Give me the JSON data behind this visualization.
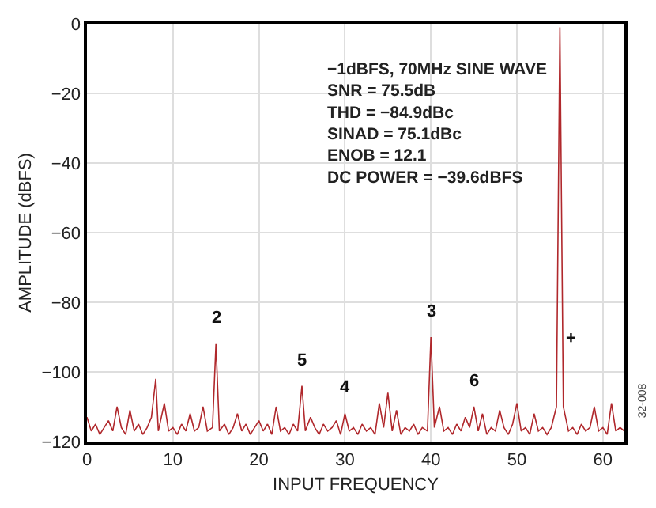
{
  "chart_data": {
    "type": "line",
    "xlabel": "INPUT FREQUENCY",
    "ylabel": "AMPLITUDE (dBFS)",
    "xlim": [
      0,
      62.5
    ],
    "xticks": [
      0,
      10,
      20,
      30,
      40,
      50,
      60
    ],
    "ylim": [
      -120,
      0
    ],
    "yticks": [
      -120,
      -100,
      -80,
      -60,
      -40,
      -20,
      0
    ],
    "grid": true,
    "series": [
      {
        "color": "#b0282c",
        "x": [
          0,
          0.5,
          1,
          1.5,
          2,
          2.5,
          3,
          3.5,
          4,
          4.5,
          5,
          5.5,
          6,
          6.5,
          7,
          7.5,
          8,
          8.3,
          9,
          9.5,
          10,
          10.5,
          11,
          11.5,
          12,
          12.5,
          13,
          13.5,
          14,
          14.6,
          15,
          15.4,
          16,
          16.5,
          17,
          17.5,
          18,
          18.5,
          19,
          19.5,
          20,
          20.5,
          21,
          21.5,
          22,
          22.5,
          23,
          23.5,
          24,
          24.5,
          25,
          25.4,
          26,
          26.5,
          27,
          27.5,
          28,
          28.5,
          29,
          29.5,
          30,
          30.5,
          31,
          31.5,
          32,
          32.5,
          33,
          33.5,
          34,
          34.5,
          35,
          35.5,
          36,
          36.5,
          37,
          37.5,
          38,
          38.5,
          39,
          39.6,
          40,
          40.4,
          41,
          41.5,
          42,
          42.5,
          43,
          43.5,
          44,
          44.5,
          45,
          45.5,
          46,
          46.5,
          47,
          47.5,
          48,
          48.5,
          49,
          49.5,
          50,
          50.5,
          51,
          51.5,
          52,
          52.5,
          53,
          53.5,
          54,
          54.6,
          55,
          55.4,
          56,
          56.5,
          57,
          57.5,
          58,
          58.5,
          59,
          59.5,
          60,
          60.5,
          61,
          61.5,
          62,
          62.5
        ],
        "values": [
          -113,
          -117,
          -115,
          -118,
          -116,
          -114,
          -117,
          -110,
          -116,
          -118,
          -111,
          -117,
          -115,
          -118,
          -116,
          -113,
          -102,
          -117,
          -109,
          -117,
          -116,
          -118,
          -115,
          -117,
          -112,
          -117,
          -116,
          -110,
          -117,
          -116,
          -92,
          -117,
          -115,
          -118,
          -116,
          -112,
          -117,
          -115,
          -118,
          -116,
          -114,
          -117,
          -115,
          -118,
          -110,
          -117,
          -116,
          -118,
          -115,
          -117,
          -104,
          -117,
          -113,
          -116,
          -118,
          -115,
          -117,
          -116,
          -114,
          -118,
          -112,
          -117,
          -116,
          -118,
          -115,
          -117,
          -116,
          -118,
          -109,
          -116,
          -106,
          -117,
          -111,
          -118,
          -116,
          -117,
          -115,
          -118,
          -116,
          -117,
          -90,
          -116,
          -110,
          -117,
          -116,
          -118,
          -115,
          -117,
          -113,
          -116,
          -110,
          -117,
          -112,
          -118,
          -116,
          -117,
          -111,
          -116,
          -118,
          -115,
          -109,
          -117,
          -116,
          -118,
          -112,
          -117,
          -116,
          -118,
          -116,
          -110,
          -1,
          -110,
          -117,
          -116,
          -118,
          -115,
          -117,
          -116,
          -110,
          -117,
          -116,
          -118,
          -109,
          -117,
          -116,
          -117
        ]
      }
    ],
    "annotations": [
      "−1dBFS, 70MHz SINE WAVE\nSNR = 75.5dB\nTHD = −84.9dBc\nSINAD = 75.1dBc\nENOB = 12.1\nDC POWER = −39.6dBFS",
      "32-008",
      "+",
      {
        "text": "2",
        "x": 15,
        "y": -92
      },
      {
        "text": "5",
        "x": 25,
        "y": -104
      },
      {
        "text": "4",
        "x": 30,
        "y": -112
      },
      {
        "text": "3",
        "x": 40,
        "y": -90
      },
      {
        "text": "6",
        "x": 45,
        "y": -110
      }
    ]
  }
}
